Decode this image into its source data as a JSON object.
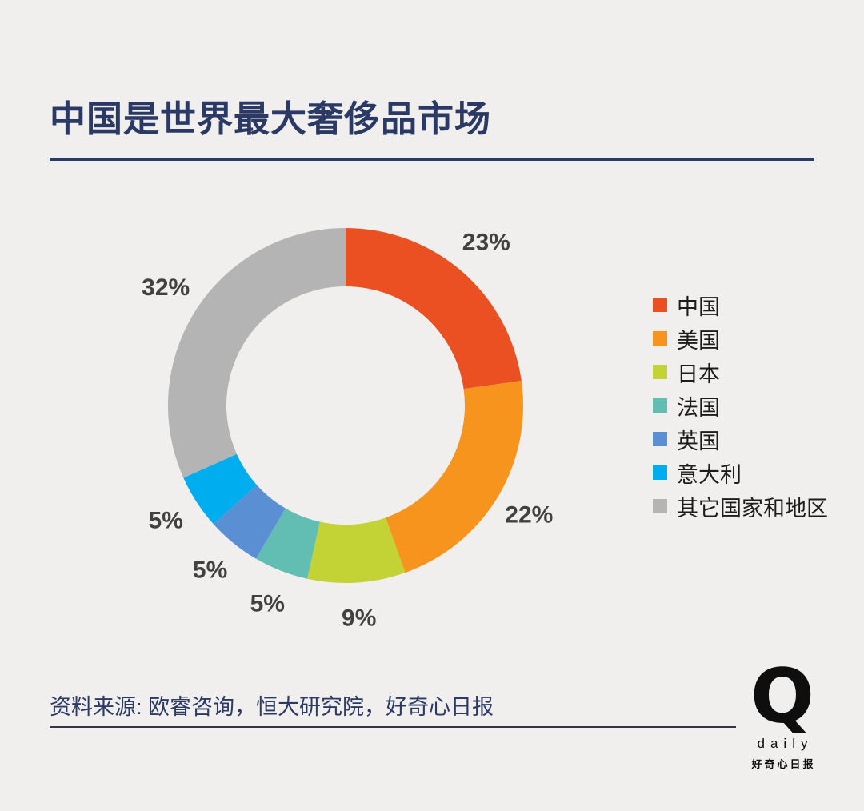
{
  "page": {
    "background": "#f0efed",
    "title": "中国是世界最大奢侈品市场",
    "title_color": "#2b3a64"
  },
  "chart_data": {
    "type": "pie",
    "subtype": "donut",
    "title": "中国是世界最大奢侈品市场",
    "unit": "%",
    "start_angle_deg": 0,
    "direction": "clockwise",
    "legend_position": "right",
    "segments": [
      {
        "label": "中国",
        "value": 23,
        "color": "#ea5022"
      },
      {
        "label": "美国",
        "value": 22,
        "color": "#f7941e"
      },
      {
        "label": "日本",
        "value": 9,
        "color": "#c3d335"
      },
      {
        "label": "法国",
        "value": 5,
        "color": "#62bdb2"
      },
      {
        "label": "英国",
        "value": 5,
        "color": "#5a8fd4"
      },
      {
        "label": "意大利",
        "value": 5,
        "color": "#00adee"
      },
      {
        "label": "其它国家和地区",
        "value": 32,
        "color": "#b5b4b4"
      }
    ],
    "value_labels": [
      "23%",
      "22%",
      "9%",
      "5%",
      "5%",
      "5%",
      "32%"
    ]
  },
  "footer": {
    "source": "资料来源: 欧睿咨询，恒大研究院，好奇心日报",
    "logo": {
      "letter": "Q",
      "word": "daily",
      "name": "好奇心日报"
    }
  }
}
